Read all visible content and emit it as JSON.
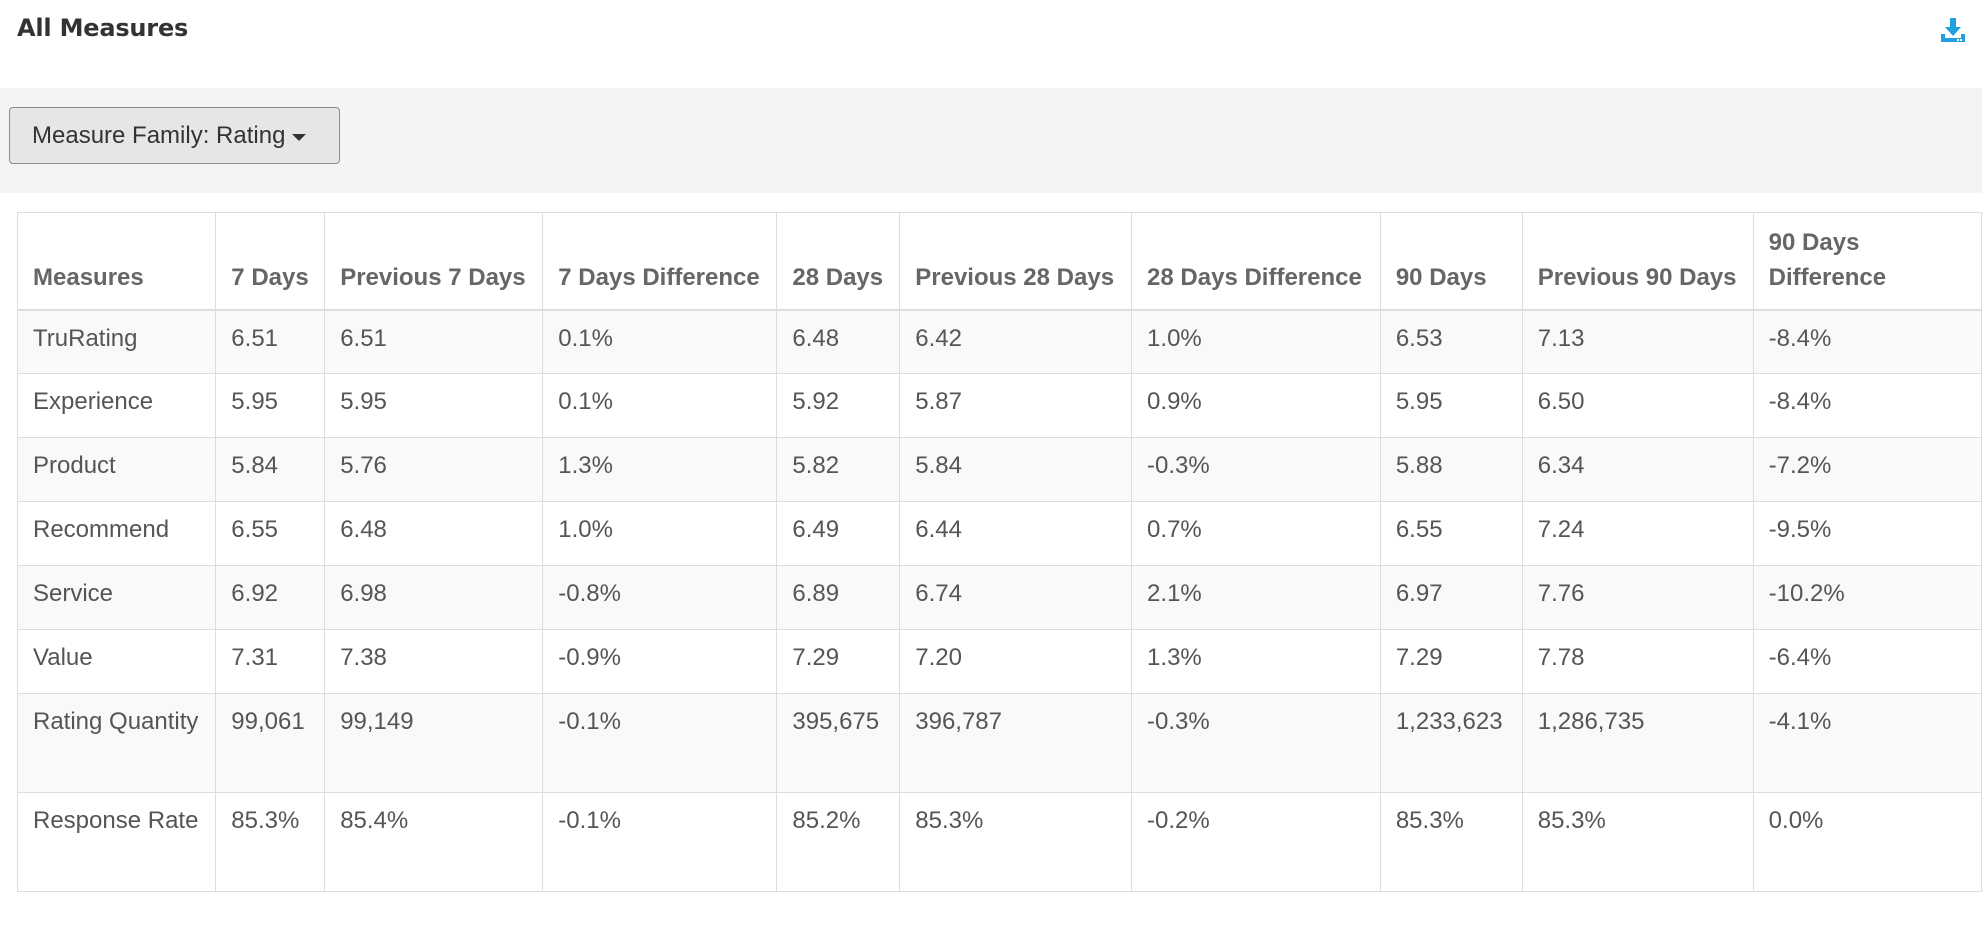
{
  "header": {
    "title": "All Measures",
    "download_icon": "download-icon",
    "accent_color": "#1fa0e0"
  },
  "filter": {
    "label": "Measure Family: Rating"
  },
  "table": {
    "columns": [
      "Measures",
      "7 Days",
      "Previous 7 Days",
      "7 Days Difference",
      "28 Days",
      "Previous 28 Days",
      "28 Days Difference",
      "90 Days",
      "Previous 90 Days",
      "90 Days Difference"
    ],
    "rows": [
      [
        "TruRating",
        "6.51",
        "6.51",
        "0.1%",
        "6.48",
        "6.42",
        "1.0%",
        "6.53",
        "7.13",
        "-8.4%"
      ],
      [
        "Experience",
        "5.95",
        "5.95",
        "0.1%",
        "5.92",
        "5.87",
        "0.9%",
        "5.95",
        "6.50",
        "-8.4%"
      ],
      [
        "Product",
        "5.84",
        "5.76",
        "1.3%",
        "5.82",
        "5.84",
        "-0.3%",
        "5.88",
        "6.34",
        "-7.2%"
      ],
      [
        "Recommend",
        "6.55",
        "6.48",
        "1.0%",
        "6.49",
        "6.44",
        "0.7%",
        "6.55",
        "7.24",
        "-9.5%"
      ],
      [
        "Service",
        "6.92",
        "6.98",
        "-0.8%",
        "6.89",
        "6.74",
        "2.1%",
        "6.97",
        "7.76",
        "-10.2%"
      ],
      [
        "Value",
        "7.31",
        "7.38",
        "-0.9%",
        "7.29",
        "7.20",
        "1.3%",
        "7.29",
        "7.78",
        "-6.4%"
      ],
      [
        "Rating Quantity",
        "99,061",
        "99,149",
        "-0.1%",
        "395,675",
        "396,787",
        "-0.3%",
        "1,233,623",
        "1,286,735",
        "-4.1%"
      ],
      [
        "Response Rate",
        "85.3%",
        "85.4%",
        "-0.1%",
        "85.2%",
        "85.3%",
        "-0.2%",
        "85.3%",
        "85.3%",
        "0.0%"
      ]
    ]
  }
}
